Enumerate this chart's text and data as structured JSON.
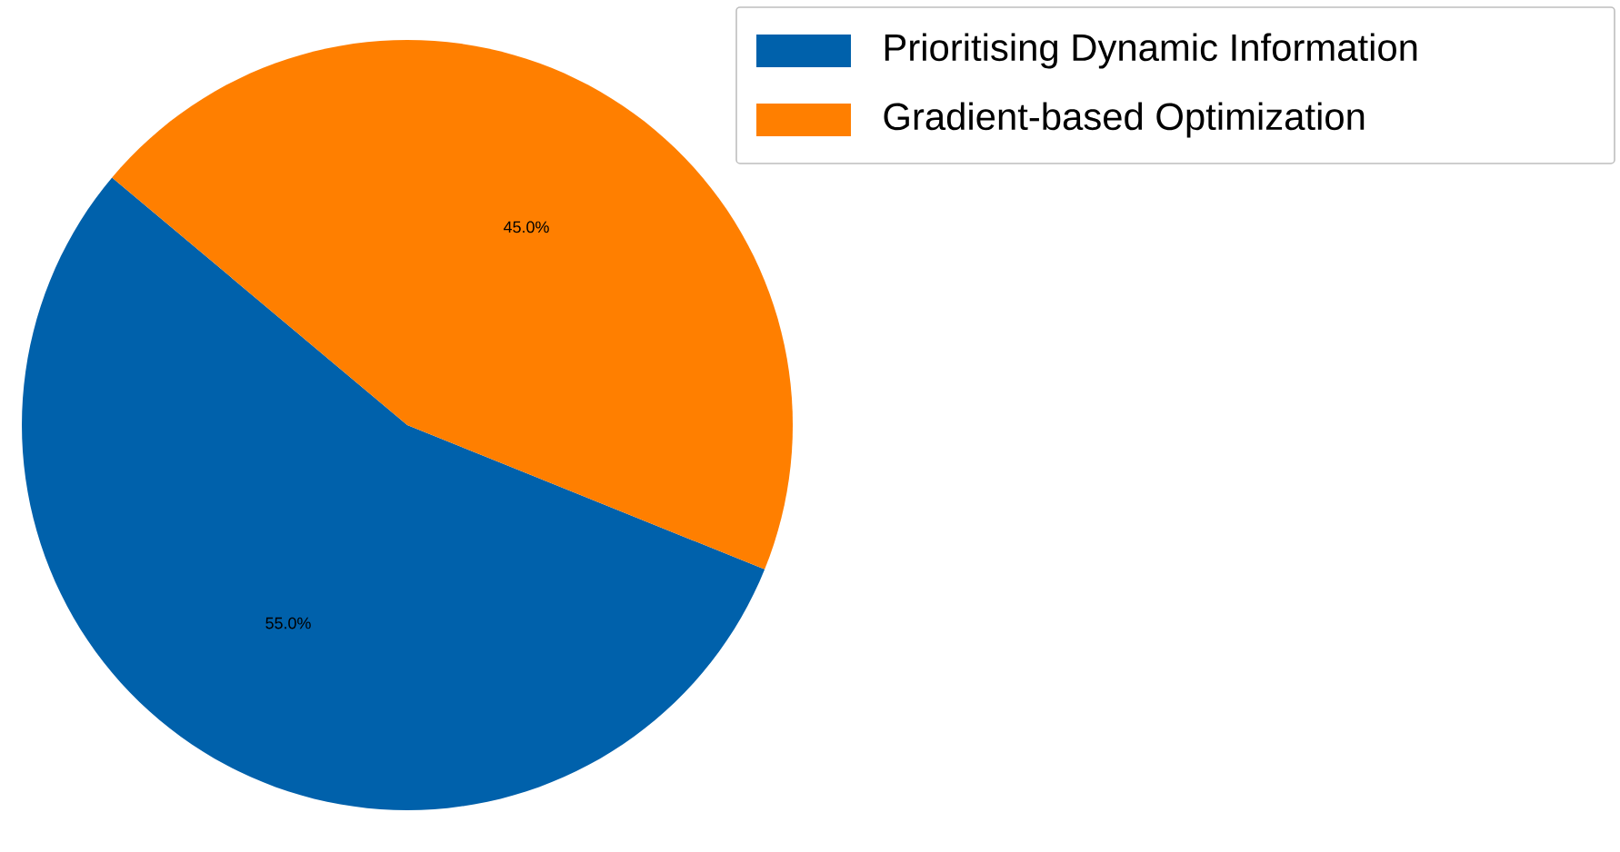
{
  "chart_data": {
    "type": "pie",
    "categories": [
      "Prioritising Dynamic Information",
      "Gradient-based Optimization"
    ],
    "values": [
      55,
      45
    ],
    "colors": [
      "#0061ab",
      "#ff7f00"
    ],
    "value_labels": [
      "55.0%",
      "45.0%"
    ],
    "legend": "top right"
  }
}
